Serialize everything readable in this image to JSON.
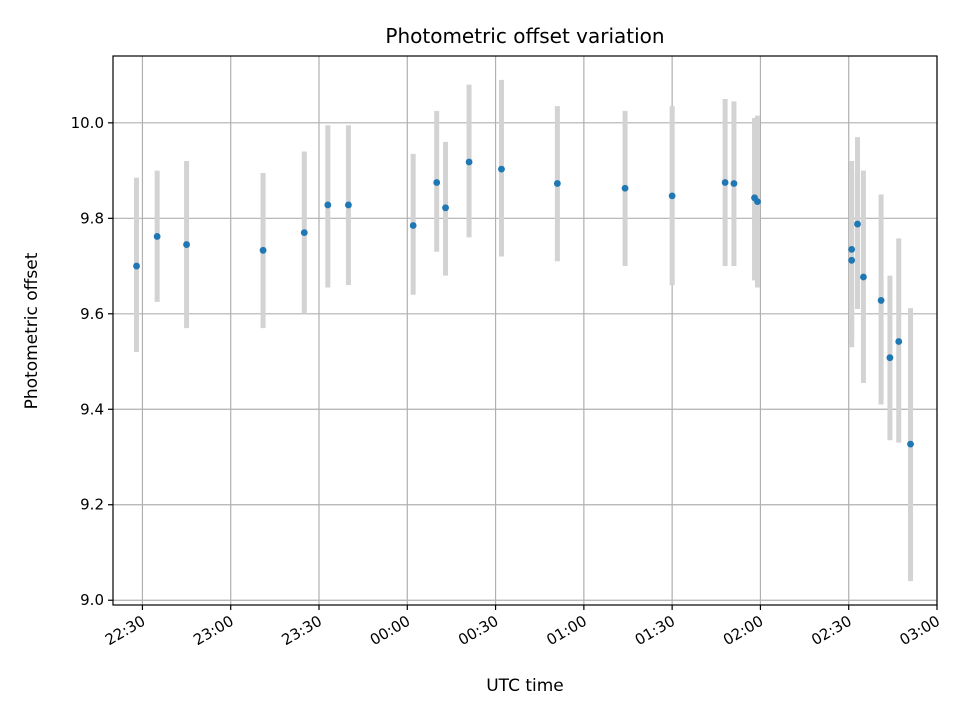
{
  "chart_data": {
    "type": "scatter",
    "title": "Photometric offset variation",
    "xlabel": "UTC time",
    "ylabel": "Photometric offset",
    "grid": true,
    "legend": "none",
    "xlim": [
      "22:20",
      "03:00"
    ],
    "ylim": [
      8.99,
      10.14
    ],
    "x_ticks": [
      "22:30",
      "23:00",
      "23:30",
      "00:00",
      "00:30",
      "01:00",
      "01:30",
      "02:00",
      "02:30",
      "03:00"
    ],
    "y_ticks": [
      "9.0",
      "9.2",
      "9.4",
      "9.6",
      "9.8",
      "10.0"
    ],
    "colors": {
      "points": "#1f77b4",
      "error_bars": "#d3d3d3",
      "grid": "#b0b0b0"
    },
    "series": [
      {
        "points": [
          {
            "x": "22:28",
            "y": 9.7,
            "err_low": 9.52,
            "err_high": 9.885
          },
          {
            "x": "22:35",
            "y": 9.762,
            "err_low": 9.625,
            "err_high": 9.9
          },
          {
            "x": "22:45",
            "y": 9.745,
            "err_low": 9.57,
            "err_high": 9.92
          },
          {
            "x": "23:11",
            "y": 9.733,
            "err_low": 9.57,
            "err_high": 9.895
          },
          {
            "x": "23:25",
            "y": 9.77,
            "err_low": 9.6,
            "err_high": 9.94
          },
          {
            "x": "23:33",
            "y": 9.828,
            "err_low": 9.655,
            "err_high": 9.995
          },
          {
            "x": "23:40",
            "y": 9.828,
            "err_low": 9.66,
            "err_high": 9.995
          },
          {
            "x": "00:02",
            "y": 9.785,
            "err_low": 9.64,
            "err_high": 9.935
          },
          {
            "x": "00:10",
            "y": 9.875,
            "err_low": 9.73,
            "err_high": 10.025
          },
          {
            "x": "00:13",
            "y": 9.822,
            "err_low": 9.68,
            "err_high": 9.96
          },
          {
            "x": "00:21",
            "y": 9.918,
            "err_low": 9.76,
            "err_high": 10.08
          },
          {
            "x": "00:32",
            "y": 9.903,
            "err_low": 9.72,
            "err_high": 10.09
          },
          {
            "x": "00:51",
            "y": 9.873,
            "err_low": 9.71,
            "err_high": 10.035
          },
          {
            "x": "01:14",
            "y": 9.863,
            "err_low": 9.7,
            "err_high": 10.025
          },
          {
            "x": "01:30",
            "y": 9.847,
            "err_low": 9.66,
            "err_high": 10.035
          },
          {
            "x": "01:48",
            "y": 9.875,
            "err_low": 9.7,
            "err_high": 10.05
          },
          {
            "x": "01:51",
            "y": 9.873,
            "err_low": 9.7,
            "err_high": 10.045
          },
          {
            "x": "01:58",
            "y": 9.843,
            "err_low": 9.67,
            "err_high": 10.01
          },
          {
            "x": "01:59",
            "y": 9.835,
            "err_low": 9.655,
            "err_high": 10.015
          },
          {
            "x": "02:31",
            "y": 9.735,
            "err_low": 9.545,
            "err_high": 9.92
          },
          {
            "x": "02:31",
            "y": 9.712,
            "err_low": 9.53,
            "err_high": 9.895
          },
          {
            "x": "02:33",
            "y": 9.788,
            "err_low": 9.61,
            "err_high": 9.97
          },
          {
            "x": "02:35",
            "y": 9.677,
            "err_low": 9.455,
            "err_high": 9.9
          },
          {
            "x": "02:41",
            "y": 9.628,
            "err_low": 9.41,
            "err_high": 9.85
          },
          {
            "x": "02:44",
            "y": 9.508,
            "err_low": 9.335,
            "err_high": 9.68
          },
          {
            "x": "02:47",
            "y": 9.542,
            "err_low": 9.33,
            "err_high": 9.758
          },
          {
            "x": "02:51",
            "y": 9.327,
            "err_low": 9.04,
            "err_high": 9.612
          }
        ]
      }
    ]
  }
}
